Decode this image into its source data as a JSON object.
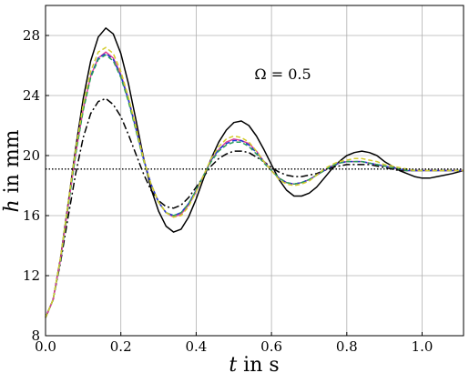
{
  "chart_data": {
    "type": "line",
    "xlabel_var": "t",
    "xlabel_unit": " in s",
    "ylabel_var": "h",
    "ylabel_unit": " in mm",
    "xlim": [
      0,
      1.11
    ],
    "ylim": [
      8,
      30
    ],
    "xticks": [
      0.0,
      0.2,
      0.4,
      0.6,
      0.8,
      1.0
    ],
    "xtick_labels": [
      "0.0",
      "0.2",
      "0.4",
      "0.6",
      "0.8",
      "1.0"
    ],
    "yticks": [
      8,
      12,
      16,
      20,
      24,
      28
    ],
    "ytick_labels": [
      "8",
      "12",
      "16",
      "20",
      "24",
      "28"
    ],
    "grid": true,
    "annotation": {
      "text": "Ω = 0.5",
      "x": 0.63,
      "y": 25.1
    },
    "series": [
      {
        "style": "solid",
        "color": "#000000",
        "x": [
          0,
          0.02,
          0.04,
          0.06,
          0.08,
          0.1,
          0.12,
          0.14,
          0.16,
          0.18,
          0.2,
          0.22,
          0.24,
          0.26,
          0.28,
          0.3,
          0.32,
          0.34,
          0.36,
          0.38,
          0.4,
          0.42,
          0.44,
          0.46,
          0.48,
          0.5,
          0.52,
          0.54,
          0.56,
          0.58,
          0.6,
          0.62,
          0.64,
          0.66,
          0.68,
          0.7,
          0.72,
          0.74,
          0.76,
          0.78,
          0.8,
          0.82,
          0.84,
          0.86,
          0.88,
          0.9,
          0.92,
          0.94,
          0.96,
          0.98,
          1.0,
          1.02,
          1.04,
          1.06,
          1.08,
          1.11
        ],
        "y": [
          9.2,
          10.4,
          13.2,
          16.8,
          20.5,
          23.8,
          26.3,
          27.9,
          28.5,
          28.1,
          26.8,
          24.8,
          22.4,
          19.9,
          17.8,
          16.3,
          15.3,
          14.9,
          15.1,
          15.9,
          17.1,
          18.5,
          19.8,
          20.9,
          21.7,
          22.2,
          22.3,
          22.0,
          21.3,
          20.4,
          19.4,
          18.4,
          17.7,
          17.3,
          17.3,
          17.5,
          17.9,
          18.5,
          19.1,
          19.6,
          20.0,
          20.2,
          20.3,
          20.2,
          20.0,
          19.6,
          19.3,
          19.0,
          18.8,
          18.6,
          18.5,
          18.5,
          18.6,
          18.7,
          18.8,
          19.0
        ]
      },
      {
        "style": "dashdot",
        "color": "#000000",
        "x": [
          0,
          0.02,
          0.04,
          0.06,
          0.08,
          0.1,
          0.12,
          0.14,
          0.16,
          0.18,
          0.2,
          0.22,
          0.24,
          0.26,
          0.28,
          0.3,
          0.32,
          0.34,
          0.36,
          0.38,
          0.4,
          0.42,
          0.44,
          0.46,
          0.48,
          0.5,
          0.52,
          0.54,
          0.56,
          0.58,
          0.6,
          0.62,
          0.64,
          0.66,
          0.68,
          0.7,
          0.72,
          0.74,
          0.76,
          0.78,
          0.8,
          0.82,
          0.84,
          0.86,
          0.88,
          0.9,
          0.92,
          0.94,
          0.96,
          0.98,
          1.0,
          1.02,
          1.04,
          1.06,
          1.08,
          1.11
        ],
        "y": [
          9.2,
          10.4,
          12.9,
          15.9,
          18.8,
          21.2,
          22.8,
          23.6,
          23.8,
          23.4,
          22.6,
          21.4,
          20.1,
          18.8,
          17.7,
          17.0,
          16.6,
          16.5,
          16.7,
          17.2,
          17.9,
          18.6,
          19.3,
          19.8,
          20.1,
          20.3,
          20.3,
          20.2,
          19.9,
          19.6,
          19.2,
          18.9,
          18.7,
          18.6,
          18.6,
          18.7,
          18.8,
          19.0,
          19.2,
          19.3,
          19.4,
          19.4,
          19.4,
          19.4,
          19.3,
          19.2,
          19.1,
          19.0,
          19.0,
          19.0,
          19.0,
          19.0,
          19.0,
          19.0,
          19.0,
          19.0
        ]
      },
      {
        "style": "solid",
        "color": "#e0409a",
        "x": [
          0,
          0.02,
          0.04,
          0.06,
          0.08,
          0.1,
          0.12,
          0.14,
          0.16,
          0.18,
          0.2,
          0.22,
          0.24,
          0.26,
          0.28,
          0.3,
          0.32,
          0.34,
          0.36,
          0.38,
          0.4,
          0.42,
          0.44,
          0.46,
          0.48,
          0.5,
          0.52,
          0.54,
          0.56,
          0.58,
          0.6,
          0.62,
          0.64,
          0.66,
          0.68,
          0.7,
          0.72,
          0.74,
          0.76,
          0.78,
          0.8,
          0.82,
          0.84,
          0.86,
          0.88,
          0.9,
          0.92,
          0.94,
          0.96,
          0.98,
          1.0,
          1.02,
          1.04,
          1.06,
          1.08,
          1.11
        ],
        "y": [
          9.2,
          10.4,
          13.1,
          16.6,
          20.1,
          23.1,
          25.3,
          26.5,
          26.9,
          26.5,
          25.4,
          23.8,
          21.9,
          19.8,
          18.1,
          16.9,
          16.2,
          15.9,
          16.1,
          16.7,
          17.6,
          18.7,
          19.7,
          20.4,
          20.9,
          21.1,
          21.0,
          20.8,
          20.3,
          19.6,
          19.0,
          18.5,
          18.2,
          18.1,
          18.2,
          18.4,
          18.7,
          19.0,
          19.3,
          19.5,
          19.6,
          19.6,
          19.6,
          19.5,
          19.4,
          19.3,
          19.2,
          19.1,
          19.0,
          19.0,
          19.0,
          19.0,
          19.0,
          19.0,
          19.0,
          19.0
        ]
      },
      {
        "style": "dashed",
        "color": "#1f3bd6",
        "x": [
          0,
          0.02,
          0.04,
          0.06,
          0.08,
          0.1,
          0.12,
          0.14,
          0.16,
          0.18,
          0.2,
          0.22,
          0.24,
          0.26,
          0.28,
          0.3,
          0.32,
          0.34,
          0.36,
          0.38,
          0.4,
          0.42,
          0.44,
          0.46,
          0.48,
          0.5,
          0.52,
          0.54,
          0.56,
          0.58,
          0.6,
          0.62,
          0.64,
          0.66,
          0.68,
          0.7,
          0.72,
          0.74,
          0.76,
          0.78,
          0.8,
          0.82,
          0.84,
          0.86,
          0.88,
          0.9,
          0.92,
          0.94,
          0.96,
          0.98,
          1.0,
          1.02,
          1.04,
          1.06,
          1.08,
          1.11
        ],
        "y": [
          9.2,
          10.4,
          13.1,
          16.6,
          20.1,
          23.1,
          25.3,
          26.5,
          26.8,
          26.4,
          25.3,
          23.7,
          21.8,
          19.8,
          18.1,
          16.9,
          16.2,
          16.0,
          16.2,
          16.8,
          17.7,
          18.7,
          19.7,
          20.4,
          20.8,
          21.0,
          21.0,
          20.7,
          20.2,
          19.6,
          19.0,
          18.5,
          18.2,
          18.1,
          18.2,
          18.4,
          18.7,
          19.0,
          19.3,
          19.5,
          19.6,
          19.6,
          19.6,
          19.5,
          19.4,
          19.3,
          19.2,
          19.1,
          19.0,
          19.0,
          19.0,
          19.0,
          19.0,
          19.0,
          19.0,
          19.0
        ]
      },
      {
        "style": "dashed",
        "color": "#2aa05a",
        "x": [
          0,
          0.02,
          0.04,
          0.06,
          0.08,
          0.1,
          0.12,
          0.14,
          0.16,
          0.18,
          0.2,
          0.22,
          0.24,
          0.26,
          0.28,
          0.3,
          0.32,
          0.34,
          0.36,
          0.38,
          0.4,
          0.42,
          0.44,
          0.46,
          0.48,
          0.5,
          0.52,
          0.54,
          0.56,
          0.58,
          0.6,
          0.62,
          0.64,
          0.66,
          0.68,
          0.7,
          0.72,
          0.74,
          0.76,
          0.78,
          0.8,
          0.82,
          0.84,
          0.86,
          0.88,
          0.9,
          0.92,
          0.94,
          0.96,
          0.98,
          1.0,
          1.02,
          1.04,
          1.06,
          1.08,
          1.11
        ],
        "y": [
          9.2,
          10.4,
          13.1,
          16.6,
          20.1,
          23.0,
          25.2,
          26.4,
          26.7,
          26.3,
          25.2,
          23.6,
          21.7,
          19.7,
          18.1,
          16.9,
          16.2,
          16.0,
          16.2,
          16.8,
          17.7,
          18.7,
          19.6,
          20.3,
          20.7,
          20.9,
          20.9,
          20.6,
          20.1,
          19.5,
          19.0,
          18.5,
          18.2,
          18.1,
          18.2,
          18.4,
          18.7,
          19.0,
          19.3,
          19.5,
          19.6,
          19.6,
          19.6,
          19.5,
          19.4,
          19.3,
          19.2,
          19.1,
          19.0,
          19.0,
          19.0,
          19.0,
          19.0,
          19.0,
          19.0,
          19.0
        ]
      },
      {
        "style": "dashed",
        "color": "#d4cc2c",
        "x": [
          0,
          0.02,
          0.04,
          0.06,
          0.08,
          0.1,
          0.12,
          0.14,
          0.16,
          0.18,
          0.2,
          0.22,
          0.24,
          0.26,
          0.28,
          0.3,
          0.32,
          0.34,
          0.36,
          0.38,
          0.4,
          0.42,
          0.44,
          0.46,
          0.48,
          0.5,
          0.52,
          0.54,
          0.56,
          0.58,
          0.6,
          0.62,
          0.64,
          0.66,
          0.68,
          0.7,
          0.72,
          0.74,
          0.76,
          0.78,
          0.8,
          0.82,
          0.84,
          0.86,
          0.88,
          0.9,
          0.92,
          0.94,
          0.96,
          0.98,
          1.0,
          1.02,
          1.04,
          1.06,
          1.08,
          1.11
        ],
        "y": [
          9.2,
          10.4,
          13.2,
          16.8,
          20.4,
          23.4,
          25.6,
          26.9,
          27.2,
          26.8,
          25.6,
          23.9,
          21.9,
          19.8,
          18.1,
          16.9,
          16.2,
          15.9,
          16.0,
          16.6,
          17.6,
          18.7,
          19.8,
          20.6,
          21.1,
          21.3,
          21.2,
          20.9,
          20.3,
          19.6,
          19.0,
          18.4,
          18.1,
          18.0,
          18.1,
          18.3,
          18.7,
          19.1,
          19.4,
          19.6,
          19.7,
          19.8,
          19.8,
          19.7,
          19.6,
          19.4,
          19.3,
          19.2,
          19.1,
          19.0,
          19.0,
          19.0,
          19.0,
          19.0,
          19.0,
          19.0
        ]
      },
      {
        "style": "dotted",
        "color": "#000000",
        "x": [
          0,
          1.11
        ],
        "y": [
          19.1,
          19.1
        ]
      }
    ]
  }
}
